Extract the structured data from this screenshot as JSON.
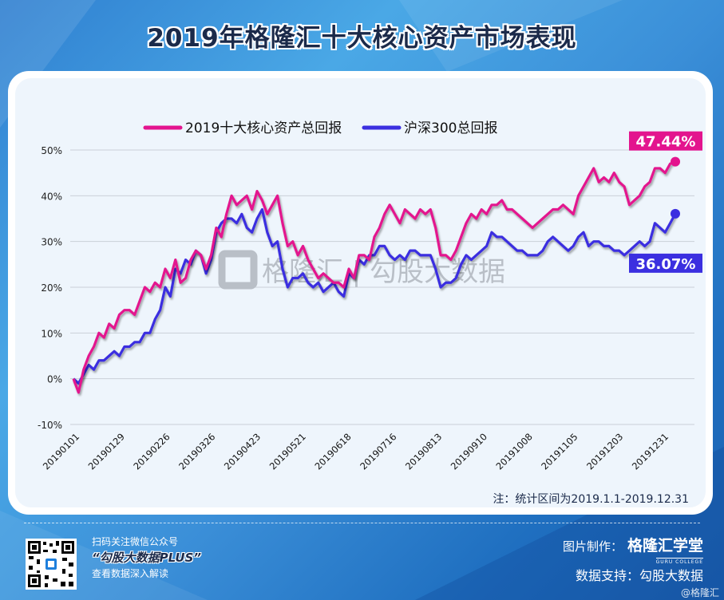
{
  "header": {
    "title": "2019年格隆汇十大核心资产市场表现"
  },
  "chart_data": {
    "type": "line",
    "title": "2019年格隆汇十大核心资产市场表现",
    "xlabel": "",
    "ylabel": "",
    "ylim": [
      -10,
      50
    ],
    "y_ticks": [
      -10,
      0,
      10,
      20,
      30,
      40,
      50
    ],
    "y_tick_labels": [
      "-10%",
      "0%",
      "10%",
      "20%",
      "30%",
      "40%",
      "50%"
    ],
    "x_tick_labels": [
      "20190101",
      "20190129",
      "20190226",
      "20190326",
      "20190423",
      "20190521",
      "20190618",
      "20190716",
      "20190813",
      "20190910",
      "20191008",
      "20191105",
      "20191203",
      "20191231"
    ],
    "grid": true,
    "legend_position": "top-center",
    "watermark": "格隆汇 | 勾股大数据",
    "series": [
      {
        "name": "2019十大核心资产总回报",
        "color": "#e3148e",
        "end_label": "47.44%",
        "values": [
          0,
          -3,
          2,
          5,
          7,
          10,
          9,
          12,
          11,
          14,
          15,
          15,
          14,
          17,
          20,
          19,
          21,
          20,
          24,
          22,
          26,
          21,
          22,
          26,
          28,
          27,
          24,
          27,
          33,
          31,
          36,
          40,
          38,
          39,
          40,
          37,
          41,
          39,
          36,
          38,
          40,
          34,
          29,
          30,
          27,
          29,
          26,
          24,
          22,
          23,
          22,
          21,
          21,
          20,
          24,
          22,
          27,
          27,
          26,
          31,
          33,
          36,
          38,
          36,
          34,
          37,
          36,
          35,
          37,
          36,
          37,
          33,
          27,
          27,
          26,
          28,
          31,
          34,
          36,
          35,
          37,
          36,
          38,
          38,
          39,
          37,
          37,
          36,
          35,
          34,
          33,
          34,
          35,
          36,
          37,
          37,
          38,
          37,
          36,
          40,
          42,
          44,
          46,
          43,
          44,
          43,
          45,
          43,
          42,
          38,
          39,
          40,
          42,
          43,
          46,
          46,
          45,
          47,
          47.44
        ]
      },
      {
        "name": "沪深300总回报",
        "color": "#3b2fe0",
        "end_label": "36.07%",
        "values": [
          0,
          -1,
          1,
          3,
          2,
          4,
          4,
          5,
          6,
          5,
          7,
          7,
          8,
          8,
          10,
          10,
          13,
          15,
          20,
          18,
          24,
          23,
          26,
          25,
          28,
          27,
          23,
          26,
          32,
          34,
          35,
          35,
          34,
          36,
          33,
          32,
          35,
          37,
          32,
          29,
          30,
          24,
          20,
          22,
          22,
          23,
          21,
          20,
          21,
          19,
          20,
          21,
          19,
          18,
          23,
          22,
          26,
          25,
          27,
          27,
          29,
          29,
          27,
          26,
          27,
          26,
          28,
          28,
          27,
          27,
          27,
          24,
          20,
          21,
          21,
          22,
          25,
          27,
          26,
          27,
          28,
          29,
          32,
          31,
          31,
          30,
          29,
          28,
          28,
          27,
          27,
          27,
          28,
          30,
          31,
          30,
          29,
          28,
          29,
          31,
          32,
          29,
          30,
          30,
          29,
          29,
          28,
          28,
          27,
          28,
          29,
          30,
          29,
          30,
          34,
          33,
          32,
          34,
          36.07
        ]
      }
    ]
  },
  "footer": {
    "note": "注：统计区间为2019.1.1-2019.12.31",
    "qr_line1": "扫码关注微信公众号",
    "qr_line2": "“勾股大数据PLUS”",
    "qr_line3": "查看数据深入解读",
    "made_by_label": "图片制作：",
    "made_by_brand": "格隆汇学堂",
    "brand_sub": "GURU COLLEGE",
    "data_support": "数据支持：勾股大数据",
    "watermark": "@格隆汇"
  }
}
